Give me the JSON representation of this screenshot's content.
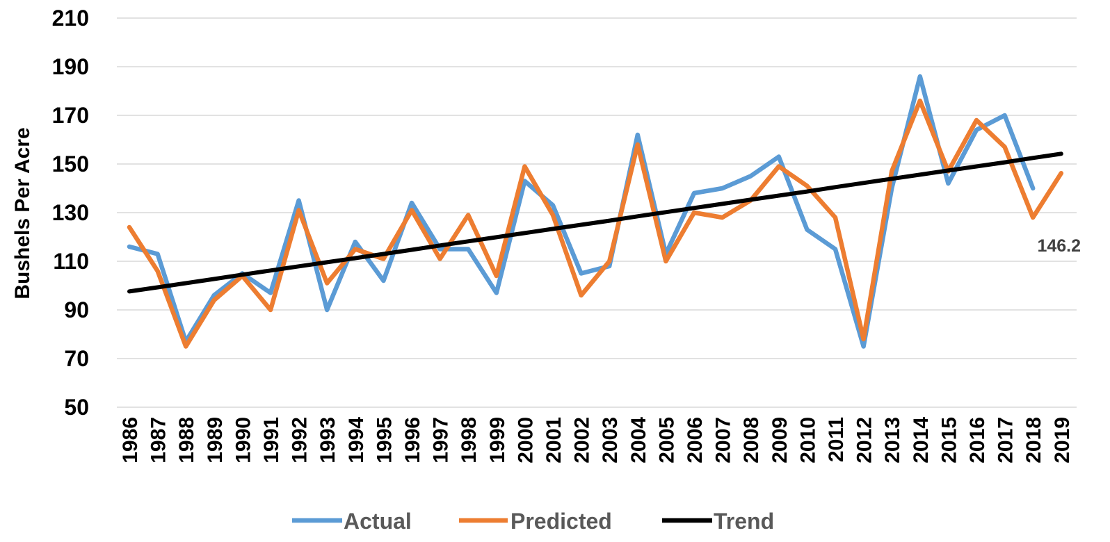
{
  "chart_data": {
    "type": "line",
    "title": "",
    "xlabel": "",
    "ylabel": "Bushels Per Acre",
    "ylim": [
      50,
      210
    ],
    "yticks": [
      50,
      70,
      90,
      110,
      130,
      150,
      170,
      190,
      210
    ],
    "grid": true,
    "legend": "bottom",
    "categories": [
      "1986",
      "1987",
      "1988",
      "1989",
      "1990",
      "1991",
      "1992",
      "1993",
      "1994",
      "1995",
      "1996",
      "1997",
      "1998",
      "1999",
      "2000",
      "2001",
      "2002",
      "2003",
      "2004",
      "2005",
      "2006",
      "2007",
      "2008",
      "2009",
      "2010",
      "2011",
      "2012",
      "2013",
      "2014",
      "2015",
      "2016",
      "2017",
      "2018",
      "2019"
    ],
    "series": [
      {
        "name": "Actual",
        "color": "#5b9bd5",
        "values": [
          116,
          113,
          77,
          96,
          105,
          97,
          135,
          90,
          118,
          102,
          134,
          115,
          115,
          97,
          143,
          133,
          105,
          108,
          162,
          113,
          138,
          140,
          145,
          153,
          123,
          115,
          75,
          140,
          186,
          142,
          164,
          170,
          140,
          null
        ]
      },
      {
        "name": "Predicted",
        "color": "#ed7d31",
        "values": [
          124,
          106,
          75,
          94,
          104,
          90,
          131,
          101,
          115,
          111,
          131,
          111,
          129,
          104,
          149,
          129,
          96,
          110,
          158,
          110,
          130,
          128,
          135,
          149,
          141,
          128,
          78,
          147,
          176,
          147,
          168,
          157,
          128,
          146.2
        ]
      },
      {
        "name": "Trend",
        "color": "#000000",
        "values": [
          97.6,
          99.3,
          101.0,
          102.7,
          104.5,
          106.2,
          107.9,
          109.6,
          111.3,
          113.0,
          114.7,
          116.5,
          118.2,
          119.9,
          121.6,
          123.3,
          125.0,
          126.7,
          128.5,
          130.2,
          131.9,
          133.6,
          135.3,
          137.0,
          138.7,
          140.5,
          142.2,
          143.9,
          145.6,
          147.3,
          149.0,
          150.7,
          152.5,
          154.2
        ]
      }
    ],
    "annotations": [
      {
        "text": "146.2",
        "series": "Predicted",
        "category": "2019"
      }
    ]
  }
}
